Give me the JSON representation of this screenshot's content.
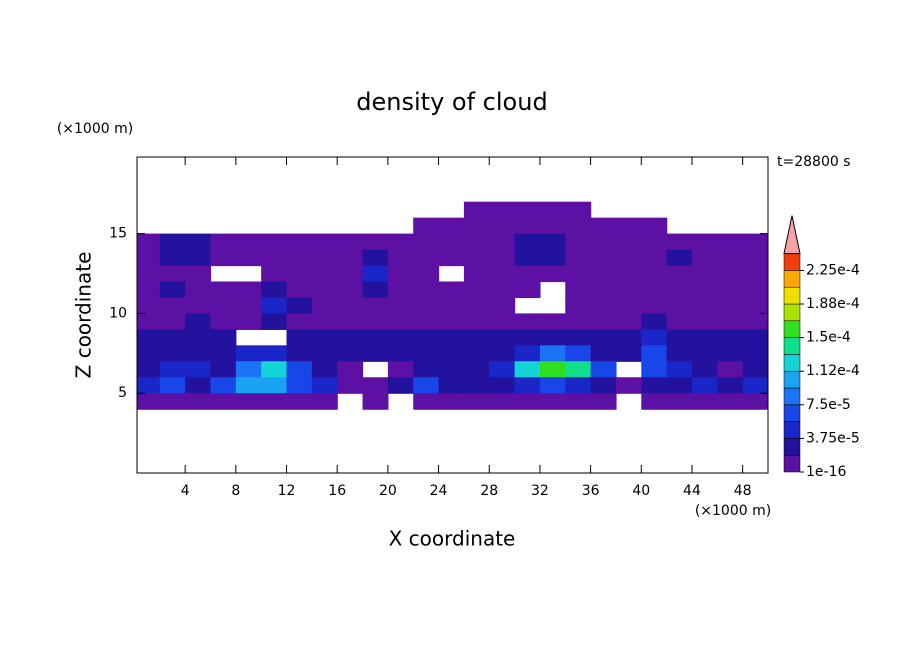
{
  "chart_data": {
    "type": "contour",
    "title": "density of cloud",
    "x_label": "X coordinate",
    "y_label": "Z coordinate",
    "x_unit": "(×1000 m)",
    "y_unit": "(×1000 m)",
    "annotation": "t=28800 s",
    "xlim": [
      0.2,
      50
    ],
    "ylim": [
      0,
      19.8
    ],
    "xticks": [
      4,
      8,
      12,
      16,
      20,
      24,
      28,
      32,
      36,
      40,
      44,
      48
    ],
    "yticks": [
      5,
      10,
      15
    ],
    "levels": [
      1e-16,
      1.875e-05,
      3.75e-05,
      5.625e-05,
      7.5e-05,
      9.375e-05,
      0.0001125,
      0.00013125,
      0.00015,
      0.00016875,
      0.0001875,
      0.00020625,
      0.000225,
      0.00024375
    ],
    "colors": [
      "#5c10a4",
      "#22129e",
      "#1a26c8",
      "#1846e8",
      "#1a74f4",
      "#18a4f0",
      "#14d4d8",
      "#10e08c",
      "#30e020",
      "#a8e400",
      "#f0e000",
      "#f8a800",
      "#f04010"
    ],
    "over_color": "#f4a4a4",
    "colorbar_ticks": [
      1e-16,
      {
        "value": 3.75e-05,
        "label": "3.75e-5"
      },
      {
        "value": 7.5e-05,
        "label": "7.5e-5"
      },
      {
        "value": 0.0001125,
        "label": "1.12e-4"
      },
      {
        "value": 0.00015,
        "label": "1.5e-4"
      },
      {
        "value": 0.0001875,
        "label": "1.88e-4"
      },
      {
        "value": 0.000225,
        "label": "2.25e-4"
      }
    ],
    "field": {
      "x": [
        1,
        3,
        5,
        7,
        9,
        11,
        13,
        15,
        17,
        19,
        21,
        23,
        25,
        27,
        29,
        31,
        33,
        35,
        37,
        39,
        41,
        43,
        45,
        47,
        49
      ],
      "z": [
        16.5,
        15.5,
        14.5,
        13.5,
        12.5,
        11.5,
        10.5,
        9.5,
        8.5,
        7.5,
        6.5,
        5.5,
        4.5
      ],
      "values": [
        [
          null,
          null,
          null,
          null,
          null,
          null,
          null,
          null,
          null,
          null,
          null,
          null,
          null,
          5e-06,
          5e-06,
          5e-06,
          5e-06,
          5e-06,
          null,
          null,
          null,
          null,
          null,
          null,
          null
        ],
        [
          null,
          null,
          null,
          null,
          null,
          null,
          null,
          null,
          null,
          null,
          null,
          5e-06,
          5e-06,
          5e-06,
          5e-06,
          5e-06,
          5e-06,
          5e-06,
          5e-06,
          5e-06,
          5e-06,
          null,
          null,
          null,
          null
        ],
        [
          5e-06,
          2.5e-05,
          2.5e-05,
          5e-06,
          5e-06,
          5e-06,
          5e-06,
          5e-06,
          5e-06,
          5e-06,
          5e-06,
          5e-06,
          5e-06,
          5e-06,
          5e-06,
          2.5e-05,
          2.5e-05,
          5e-06,
          5e-06,
          5e-06,
          5e-06,
          5e-06,
          5e-06,
          5e-06,
          5e-06
        ],
        [
          5e-06,
          2.5e-05,
          2.5e-05,
          5e-06,
          5e-06,
          5e-06,
          5e-06,
          5e-06,
          5e-06,
          2.5e-05,
          5e-06,
          5e-06,
          5e-06,
          5e-06,
          5e-06,
          2.5e-05,
          2.5e-05,
          5e-06,
          5e-06,
          5e-06,
          5e-06,
          2.5e-05,
          5e-06,
          5e-06,
          5e-06
        ],
        [
          5e-06,
          5e-06,
          5e-06,
          null,
          null,
          5e-06,
          5e-06,
          5e-06,
          5e-06,
          4.5e-05,
          5e-06,
          5e-06,
          null,
          5e-06,
          5e-06,
          5e-06,
          5e-06,
          5e-06,
          5e-06,
          5e-06,
          5e-06,
          5e-06,
          5e-06,
          5e-06,
          5e-06
        ],
        [
          5e-06,
          2.5e-05,
          5e-06,
          5e-06,
          5e-06,
          2.5e-05,
          5e-06,
          5e-06,
          5e-06,
          2.5e-05,
          5e-06,
          5e-06,
          5e-06,
          5e-06,
          5e-06,
          5e-06,
          null,
          5e-06,
          5e-06,
          5e-06,
          5e-06,
          5e-06,
          5e-06,
          5e-06,
          5e-06
        ],
        [
          5e-06,
          5e-06,
          5e-06,
          5e-06,
          5e-06,
          4.5e-05,
          2.5e-05,
          5e-06,
          5e-06,
          5e-06,
          5e-06,
          5e-06,
          5e-06,
          5e-06,
          5e-06,
          null,
          null,
          5e-06,
          5e-06,
          5e-06,
          5e-06,
          5e-06,
          5e-06,
          5e-06,
          5e-06
        ],
        [
          5e-06,
          5e-06,
          2.5e-05,
          5e-06,
          5e-06,
          2.5e-05,
          5e-06,
          5e-06,
          5e-06,
          5e-06,
          5e-06,
          5e-06,
          5e-06,
          5e-06,
          5e-06,
          5e-06,
          5e-06,
          5e-06,
          5e-06,
          5e-06,
          2.5e-05,
          5e-06,
          5e-06,
          5e-06,
          5e-06
        ],
        [
          2.5e-05,
          2.5e-05,
          2.5e-05,
          2.5e-05,
          null,
          null,
          2.5e-05,
          2.5e-05,
          2.5e-05,
          2.5e-05,
          2.5e-05,
          2.5e-05,
          2.5e-05,
          2.5e-05,
          2.5e-05,
          2.5e-05,
          2.5e-05,
          2.5e-05,
          2.5e-05,
          2.5e-05,
          4.5e-05,
          2.5e-05,
          2.5e-05,
          2.5e-05,
          2.5e-05
        ],
        [
          2.5e-05,
          2.5e-05,
          2.5e-05,
          2.5e-05,
          4.5e-05,
          4.5e-05,
          2.5e-05,
          2.5e-05,
          2.5e-05,
          2.5e-05,
          2.5e-05,
          2.5e-05,
          2.5e-05,
          2.5e-05,
          2.5e-05,
          4.5e-05,
          8.5e-05,
          6.5e-05,
          2.5e-05,
          2.5e-05,
          6.5e-05,
          2.5e-05,
          2.5e-05,
          2.5e-05,
          2.5e-05
        ],
        [
          2.5e-05,
          4.5e-05,
          4.5e-05,
          2.5e-05,
          8.5e-05,
          0.00013,
          6.5e-05,
          2.5e-05,
          5e-06,
          null,
          5e-06,
          2.5e-05,
          2.5e-05,
          2.5e-05,
          4.5e-05,
          0.00012,
          0.00016,
          0.000145,
          6.5e-05,
          null,
          6.5e-05,
          4.5e-05,
          2.5e-05,
          5e-06,
          2.5e-05
        ],
        [
          4.5e-05,
          6.5e-05,
          2.5e-05,
          6.5e-05,
          0.0001,
          0.00011,
          6.5e-05,
          4.5e-05,
          5e-06,
          5e-06,
          2.5e-05,
          6.5e-05,
          2.5e-05,
          2.5e-05,
          2.5e-05,
          4.5e-05,
          6.5e-05,
          4.5e-05,
          2.5e-05,
          5e-06,
          2.5e-05,
          2.5e-05,
          4.5e-05,
          2.5e-05,
          4.5e-05
        ],
        [
          5e-06,
          5e-06,
          5e-06,
          5e-06,
          5e-06,
          5e-06,
          5e-06,
          5e-06,
          null,
          5e-06,
          null,
          5e-06,
          5e-06,
          5e-06,
          5e-06,
          5e-06,
          5e-06,
          5e-06,
          5e-06,
          null,
          5e-06,
          5e-06,
          5e-06,
          5e-06,
          5e-06
        ]
      ]
    }
  }
}
